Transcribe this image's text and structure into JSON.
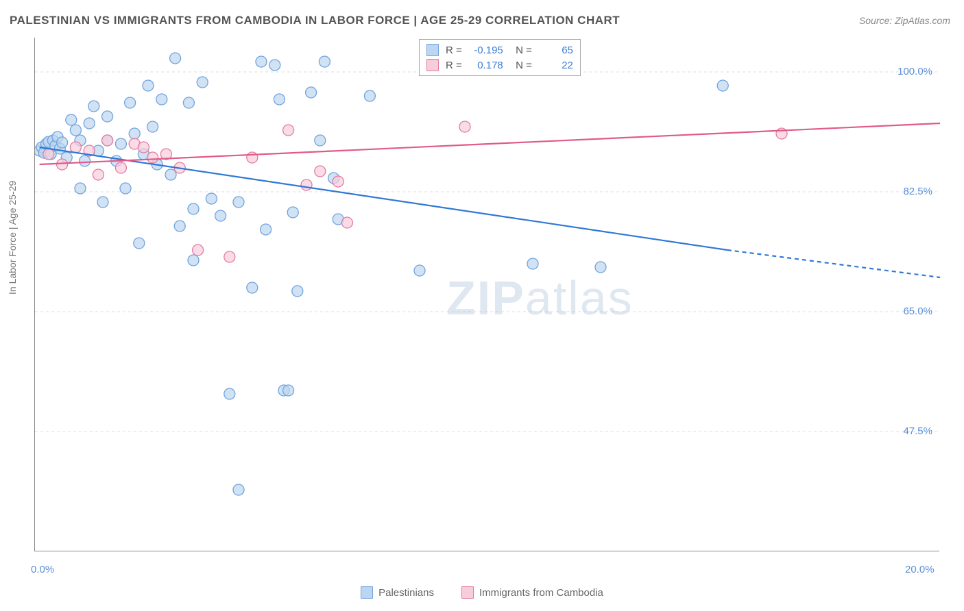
{
  "title": "PALESTINIAN VS IMMIGRANTS FROM CAMBODIA IN LABOR FORCE | AGE 25-29 CORRELATION CHART",
  "source": "Source: ZipAtlas.com",
  "ylabel": "In Labor Force | Age 25-29",
  "watermark": "ZIPatlas",
  "chart": {
    "type": "scatter",
    "background": "#ffffff",
    "grid_color": "#dddddd",
    "axis_color": "#888888",
    "xlim": [
      0,
      20
    ],
    "ylim": [
      30,
      105
    ],
    "xticks": [
      0,
      2.5,
      5,
      7.5,
      10,
      12.5,
      15,
      17.5,
      20
    ],
    "xtick_labels": {
      "0": "0.0%",
      "20": "20.0%"
    },
    "yticks": [
      47.5,
      65.0,
      82.5,
      100.0
    ],
    "ytick_labels": [
      "47.5%",
      "65.0%",
      "82.5%",
      "100.0%"
    ],
    "marker_radius": 8,
    "marker_stroke_width": 1.3,
    "line_width": 2.2
  },
  "series": [
    {
      "name": "Palestinians",
      "color_fill": "#bcd5f0",
      "color_stroke": "#6fa3dd",
      "line_color": "#2f78d6",
      "R": "-0.195",
      "N": "65",
      "trend": {
        "x1": 0.1,
        "y1": 89.0,
        "x2": 15.3,
        "y2": 74.0,
        "dash_x2": 20.0,
        "dash_y2": 70.0
      },
      "points": [
        [
          0.1,
          88.5
        ],
        [
          0.15,
          89.0
        ],
        [
          0.2,
          88.2
        ],
        [
          0.25,
          89.5
        ],
        [
          0.3,
          89.8
        ],
        [
          0.35,
          88.0
        ],
        [
          0.4,
          90.0
        ],
        [
          0.45,
          89.2
        ],
        [
          0.5,
          90.5
        ],
        [
          0.55,
          88.8
        ],
        [
          0.6,
          89.7
        ],
        [
          0.7,
          87.5
        ],
        [
          0.8,
          93.0
        ],
        [
          0.9,
          91.5
        ],
        [
          1.0,
          90.0
        ],
        [
          1.1,
          87.0
        ],
        [
          1.2,
          92.5
        ],
        [
          1.3,
          95.0
        ],
        [
          1.4,
          88.5
        ],
        [
          1.5,
          81.0
        ],
        [
          1.6,
          90.0
        ],
        [
          1.6,
          93.5
        ],
        [
          1.8,
          87.0
        ],
        [
          1.9,
          89.5
        ],
        [
          2.0,
          83.0
        ],
        [
          2.1,
          95.5
        ],
        [
          2.2,
          91.0
        ],
        [
          2.4,
          88.0
        ],
        [
          2.5,
          98.0
        ],
        [
          2.6,
          92.0
        ],
        [
          2.8,
          96.0
        ],
        [
          3.0,
          85.0
        ],
        [
          3.1,
          102.0
        ],
        [
          3.2,
          77.5
        ],
        [
          3.4,
          95.5
        ],
        [
          3.5,
          80.0
        ],
        [
          3.7,
          98.5
        ],
        [
          3.9,
          81.5
        ],
        [
          4.1,
          79.0
        ],
        [
          4.3,
          53.0
        ],
        [
          4.5,
          81.0
        ],
        [
          4.5,
          39.0
        ],
        [
          4.8,
          68.5
        ],
        [
          5.0,
          101.5
        ],
        [
          5.1,
          77.0
        ],
        [
          5.3,
          101.0
        ],
        [
          5.4,
          96.0
        ],
        [
          5.5,
          53.5
        ],
        [
          5.6,
          53.5
        ],
        [
          5.7,
          79.5
        ],
        [
          5.8,
          68.0
        ],
        [
          6.1,
          97.0
        ],
        [
          6.3,
          90.0
        ],
        [
          6.4,
          101.5
        ],
        [
          6.6,
          84.5
        ],
        [
          6.7,
          78.5
        ],
        [
          7.4,
          96.5
        ],
        [
          8.5,
          71.0
        ],
        [
          11.0,
          72.0
        ],
        [
          12.5,
          71.5
        ],
        [
          15.2,
          98.0
        ],
        [
          2.3,
          75.0
        ],
        [
          2.7,
          86.5
        ],
        [
          1.0,
          83.0
        ],
        [
          3.5,
          72.5
        ]
      ]
    },
    {
      "name": "Immigrants from Cambodia",
      "color_fill": "#f7cddb",
      "color_stroke": "#e27ba0",
      "line_color": "#e05a8a",
      "R": "0.178",
      "N": "22",
      "trend": {
        "x1": 0.1,
        "y1": 86.5,
        "x2": 20.0,
        "y2": 92.5
      },
      "points": [
        [
          0.3,
          88.0
        ],
        [
          0.6,
          86.5
        ],
        [
          0.9,
          89.0
        ],
        [
          1.2,
          88.5
        ],
        [
          1.4,
          85.0
        ],
        [
          1.6,
          90.0
        ],
        [
          1.9,
          86.0
        ],
        [
          2.2,
          89.5
        ],
        [
          2.6,
          87.5
        ],
        [
          2.9,
          88.0
        ],
        [
          3.2,
          86.0
        ],
        [
          3.6,
          74.0
        ],
        [
          4.3,
          73.0
        ],
        [
          5.6,
          91.5
        ],
        [
          6.0,
          83.5
        ],
        [
          6.3,
          85.5
        ],
        [
          6.7,
          84.0
        ],
        [
          6.9,
          78.0
        ],
        [
          9.5,
          92.0
        ],
        [
          16.5,
          91.0
        ],
        [
          2.4,
          89.0
        ],
        [
          4.8,
          87.5
        ]
      ]
    }
  ],
  "bottom_legend": [
    {
      "label": "Palestinians",
      "fill": "#bcd5f0",
      "stroke": "#6fa3dd"
    },
    {
      "label": "Immigrants from Cambodia",
      "fill": "#f7cddb",
      "stroke": "#e27ba0"
    }
  ]
}
